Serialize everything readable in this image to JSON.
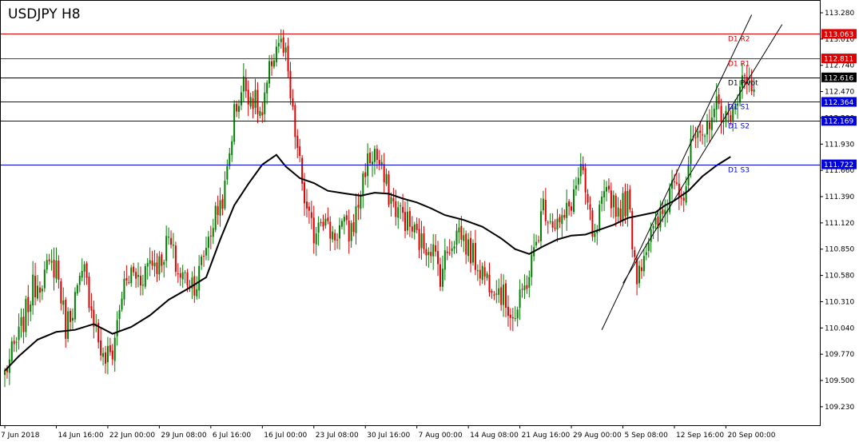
{
  "chart_data": {
    "type": "candlestick",
    "title": "USDJPY H8",
    "xlabel": "",
    "ylabel": "",
    "ylim": [
      109.0,
      113.4
    ],
    "y_ticks": [
      "113.280",
      "113.010",
      "112.740",
      "112.470",
      "112.200",
      "111.930",
      "111.660",
      "111.390",
      "111.120",
      "110.850",
      "110.580",
      "110.310",
      "110.040",
      "109.770",
      "109.500",
      "109.230"
    ],
    "x_ticks": [
      {
        "label": "7 Jun 2018",
        "index": 0
      },
      {
        "label": "14 Jun 16:00",
        "index": 22
      },
      {
        "label": "22 Jun 00:00",
        "index": 44
      },
      {
        "label": "29 Jun 08:00",
        "index": 66
      },
      {
        "label": "6 Jul 16:00",
        "index": 88
      },
      {
        "label": "16 Jul 00:00",
        "index": 110
      },
      {
        "label": "23 Jul 08:00",
        "index": 132
      },
      {
        "label": "30 Jul 16:00",
        "index": 154
      },
      {
        "label": "7 Aug 00:00",
        "index": 176
      },
      {
        "label": "14 Aug 08:00",
        "index": 198
      },
      {
        "label": "21 Aug 16:00",
        "index": 220
      },
      {
        "label": "29 Aug 00:00",
        "index": 242
      },
      {
        "label": "5 Sep 08:00",
        "index": 264
      },
      {
        "label": "12 Sep 16:00",
        "index": 286
      },
      {
        "label": "20 Sep 00:00",
        "index": 308
      }
    ],
    "levels": [
      {
        "name": "D1 R2",
        "value": 113.063,
        "label": "113.063",
        "color": "#e00000"
      },
      {
        "name": "D1 R1",
        "value": 112.811,
        "label": "112.811",
        "color": "#e00000"
      },
      {
        "name": "D1 Pivot",
        "value": 112.616,
        "label": "112.616",
        "color": "#000000"
      },
      {
        "name": "D1 S1",
        "value": 112.364,
        "label": "112.364",
        "color": "#0000dd"
      },
      {
        "name": "D1 S2",
        "value": 112.169,
        "label": "112.169",
        "color": "#0000dd"
      },
      {
        "name": "D1 S3",
        "value": 111.722,
        "label": "111.722",
        "color": "#0000dd"
      }
    ],
    "colors": {
      "bull": "#008000",
      "bear": "#e00000",
      "ma": "#000000",
      "channel": "#000000"
    },
    "channel": [
      {
        "start": [
          255,
          110.02
        ],
        "end": [
          319,
          113.26
        ]
      },
      {
        "start": [
          264,
          110.5
        ],
        "end": [
          332,
          113.16
        ]
      }
    ],
    "anchors": [
      [
        0,
        109.58
      ],
      [
        6,
        109.95
      ],
      [
        12,
        110.45
      ],
      [
        18,
        110.62
      ],
      [
        22,
        110.7
      ],
      [
        26,
        110.05
      ],
      [
        30,
        110.35
      ],
      [
        34,
        110.6
      ],
      [
        38,
        110.15
      ],
      [
        42,
        109.7
      ],
      [
        46,
        109.8
      ],
      [
        50,
        110.4
      ],
      [
        54,
        110.6
      ],
      [
        58,
        110.55
      ],
      [
        62,
        110.75
      ],
      [
        66,
        110.7
      ],
      [
        70,
        110.95
      ],
      [
        74,
        110.6
      ],
      [
        78,
        110.55
      ],
      [
        82,
        110.5
      ],
      [
        86,
        110.9
      ],
      [
        90,
        111.2
      ],
      [
        94,
        111.45
      ],
      [
        98,
        112.25
      ],
      [
        102,
        112.55
      ],
      [
        106,
        112.4
      ],
      [
        110,
        112.2
      ],
      [
        114,
        112.8
      ],
      [
        117,
        113.0
      ],
      [
        120,
        112.8
      ],
      [
        123,
        112.2
      ],
      [
        126,
        111.7
      ],
      [
        129,
        111.2
      ],
      [
        132,
        111.0
      ],
      [
        135,
        111.25
      ],
      [
        138,
        111.05
      ],
      [
        141,
        111.0
      ],
      [
        144,
        111.1
      ],
      [
        147,
        111.0
      ],
      [
        150,
        111.2
      ],
      [
        154,
        111.7
      ],
      [
        158,
        111.85
      ],
      [
        162,
        111.55
      ],
      [
        166,
        111.3
      ],
      [
        170,
        111.2
      ],
      [
        174,
        111.05
      ],
      [
        178,
        110.9
      ],
      [
        182,
        110.9
      ],
      [
        186,
        110.6
      ],
      [
        190,
        110.9
      ],
      [
        194,
        111.05
      ],
      [
        198,
        110.85
      ],
      [
        202,
        110.7
      ],
      [
        206,
        110.55
      ],
      [
        210,
        110.5
      ],
      [
        214,
        110.3
      ],
      [
        218,
        110.15
      ],
      [
        222,
        110.45
      ],
      [
        226,
        110.8
      ],
      [
        230,
        111.3
      ],
      [
        234,
        111.15
      ],
      [
        238,
        111.1
      ],
      [
        242,
        111.35
      ],
      [
        246,
        111.65
      ],
      [
        250,
        111.15
      ],
      [
        252,
        110.9
      ],
      [
        254,
        111.2
      ],
      [
        258,
        111.45
      ],
      [
        262,
        111.25
      ],
      [
        266,
        111.35
      ],
      [
        270,
        110.6
      ],
      [
        274,
        110.9
      ],
      [
        278,
        111.05
      ],
      [
        282,
        111.25
      ],
      [
        286,
        111.65
      ],
      [
        290,
        111.4
      ],
      [
        294,
        112.0
      ],
      [
        298,
        111.9
      ],
      [
        302,
        112.3
      ],
      [
        306,
        112.3
      ],
      [
        310,
        112.1
      ],
      [
        314,
        112.6
      ],
      [
        318,
        112.55
      ],
      [
        320,
        112.55
      ]
    ],
    "ma_values": [
      [
        0,
        109.6
      ],
      [
        6,
        109.75
      ],
      [
        14,
        109.92
      ],
      [
        22,
        110.0
      ],
      [
        30,
        110.02
      ],
      [
        38,
        110.08
      ],
      [
        46,
        109.98
      ],
      [
        54,
        110.05
      ],
      [
        62,
        110.17
      ],
      [
        70,
        110.33
      ],
      [
        78,
        110.44
      ],
      [
        86,
        110.56
      ],
      [
        92,
        110.95
      ],
      [
        98,
        111.3
      ],
      [
        104,
        111.52
      ],
      [
        110,
        111.72
      ],
      [
        116,
        111.82
      ],
      [
        120,
        111.7
      ],
      [
        126,
        111.58
      ],
      [
        132,
        111.53
      ],
      [
        138,
        111.45
      ],
      [
        146,
        111.42
      ],
      [
        152,
        111.4
      ],
      [
        158,
        111.43
      ],
      [
        164,
        111.42
      ],
      [
        170,
        111.37
      ],
      [
        176,
        111.33
      ],
      [
        182,
        111.27
      ],
      [
        188,
        111.2
      ],
      [
        196,
        111.15
      ],
      [
        204,
        111.08
      ],
      [
        212,
        110.96
      ],
      [
        218,
        110.85
      ],
      [
        224,
        110.8
      ],
      [
        230,
        110.88
      ],
      [
        236,
        110.95
      ],
      [
        242,
        110.99
      ],
      [
        248,
        111.0
      ],
      [
        254,
        111.05
      ],
      [
        260,
        111.1
      ],
      [
        266,
        111.17
      ],
      [
        272,
        111.2
      ],
      [
        278,
        111.23
      ],
      [
        282,
        111.3
      ],
      [
        286,
        111.35
      ],
      [
        292,
        111.45
      ],
      [
        298,
        111.6
      ],
      [
        304,
        111.71
      ],
      [
        310,
        111.8
      ]
    ]
  }
}
